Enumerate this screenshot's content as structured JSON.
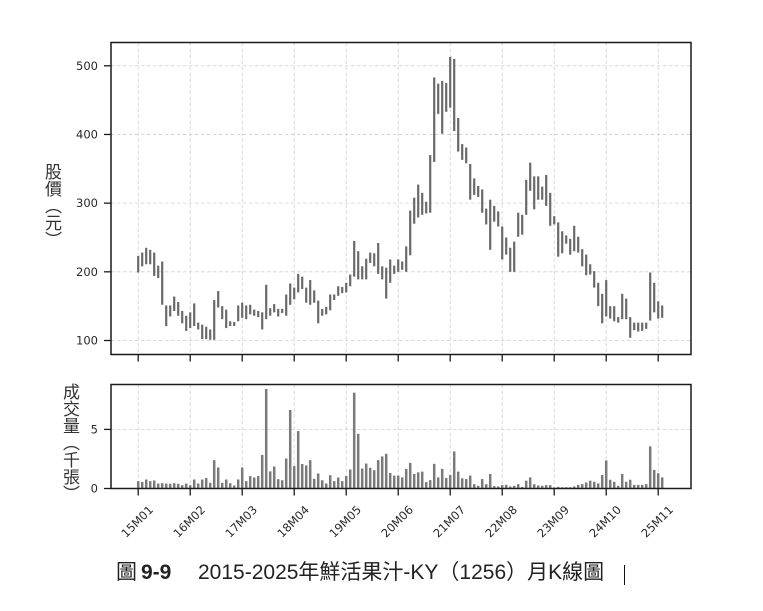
{
  "figure": {
    "caption_prefix": "圖",
    "caption_number": "9-9",
    "caption_text": "2015-2025年鮮活果汁-KY（1256）月K線圖"
  },
  "axes": {
    "price_ylabel": "股價（元）",
    "volume_ylabel": "成交量（千張）"
  },
  "colors": {
    "price_bar": "#6a6a6a",
    "volume_bar": "#7a7a7a",
    "grid": "#cfcfcf",
    "frame": "#1a1a1a",
    "background": "#ffffff"
  },
  "chart_data": [
    {
      "type": "bar",
      "subtype": "monthly candlestick (high-low range bars)",
      "title": "2015-2025年鮮活果汁-KY（1256）月K線圖",
      "xlabel": "",
      "ylabel": "股價（元）",
      "xlim": [
        -6.8,
        138.2
      ],
      "ylim": [
        79.6,
        533.9
      ],
      "grid": true,
      "yticks": [
        100,
        200,
        300,
        400,
        500
      ],
      "xtick_positions": [
        0,
        13,
        26,
        39,
        52,
        65,
        78,
        91,
        104,
        117,
        130
      ],
      "xtick_labels": [
        "15M01",
        "16M02",
        "17M03",
        "18M04",
        "19M05",
        "20M06",
        "21M07",
        "22M08",
        "23M09",
        "24M10",
        "25M11"
      ],
      "categories": [
        "15M01",
        "15M02",
        "15M03",
        "15M04",
        "15M05",
        "15M06",
        "15M07",
        "15M08",
        "15M09",
        "15M10",
        "15M11",
        "15M12",
        "16M01",
        "16M02",
        "16M03",
        "16M04",
        "16M05",
        "16M06",
        "16M07",
        "16M08",
        "16M09",
        "16M10",
        "16M11",
        "16M12",
        "17M01",
        "17M02",
        "17M03",
        "17M04",
        "17M05",
        "17M06",
        "17M07",
        "17M08",
        "17M09",
        "17M10",
        "17M11",
        "17M12",
        "18M01",
        "18M02",
        "18M03",
        "18M04",
        "18M05",
        "18M06",
        "18M07",
        "18M08",
        "18M09",
        "18M10",
        "18M11",
        "18M12",
        "19M01",
        "19M02",
        "19M03",
        "19M04",
        "19M05",
        "19M06",
        "19M07",
        "19M08",
        "19M09",
        "19M10",
        "19M11",
        "19M12",
        "20M01",
        "20M02",
        "20M03",
        "20M04",
        "20M05",
        "20M06",
        "20M07",
        "20M08",
        "20M09",
        "20M10",
        "20M11",
        "20M12",
        "21M01",
        "21M02",
        "21M03",
        "21M04",
        "21M05",
        "21M06",
        "21M07",
        "21M08",
        "21M09",
        "21M10",
        "21M11",
        "21M12",
        "22M01",
        "22M02",
        "22M03",
        "22M04",
        "22M05",
        "22M06",
        "22M07",
        "22M08",
        "22M09",
        "22M10",
        "22M11",
        "22M12",
        "23M01",
        "23M02",
        "23M03",
        "23M04",
        "23M05",
        "23M06",
        "23M07",
        "23M08",
        "23M09",
        "23M10",
        "23M11",
        "23M12",
        "24M01",
        "24M02",
        "24M03",
        "24M04",
        "24M05",
        "24M06",
        "24M07",
        "24M08",
        "24M09",
        "24M10",
        "24M11",
        "24M12",
        "25M01",
        "25M02",
        "25M03",
        "25M04",
        "25M05",
        "25M06",
        "25M07",
        "25M08",
        "25M09",
        "25M10",
        "25M11",
        "25M12"
      ],
      "series": [
        {
          "name": "high",
          "values": [
            223,
            228,
            235,
            232,
            228,
            209,
            215,
            151,
            151,
            164,
            156,
            143,
            136,
            141,
            154,
            126,
            123,
            120,
            116,
            159,
            172,
            150,
            145,
            128,
            127,
            151,
            155,
            151,
            152,
            145,
            143,
            141,
            181,
            147,
            153,
            146,
            146,
            167,
            183,
            177,
            197,
            193,
            177,
            188,
            173,
            158,
            146,
            149,
            167,
            167,
            179,
            178,
            184,
            196,
            245,
            230,
            208,
            219,
            228,
            227,
            242,
            208,
            206,
            218,
            209,
            218,
            215,
            237,
            289,
            308,
            327,
            315,
            302,
            370,
            483,
            474,
            478,
            475,
            513,
            510,
            424,
            386,
            381,
            357,
            336,
            325,
            320,
            292,
            305,
            296,
            288,
            266,
            250,
            235,
            244,
            286,
            283,
            334,
            359,
            339,
            339,
            324,
            341,
            315,
            281,
            272,
            259,
            253,
            248,
            267,
            251,
            233,
            225,
            211,
            201,
            184,
            168,
            188,
            150,
            150,
            134,
            168,
            161,
            134,
            126,
            126,
            126,
            126,
            199,
            184,
            157,
            151
          ]
        },
        {
          "name": "low",
          "values": [
            199,
            208,
            211,
            211,
            194,
            191,
            152,
            121,
            135,
            143,
            136,
            125,
            114,
            118,
            121,
            116,
            102,
            102,
            101,
            101,
            148,
            131,
            118,
            121,
            121,
            128,
            133,
            131,
            138,
            136,
            134,
            116,
            131,
            136,
            141,
            135,
            140,
            136,
            152,
            160,
            170,
            175,
            155,
            152,
            155,
            125,
            136,
            138,
            144,
            159,
            165,
            169,
            170,
            179,
            193,
            189,
            189,
            189,
            213,
            208,
            197,
            189,
            161,
            184,
            197,
            200,
            203,
            200,
            224,
            270,
            279,
            283,
            285,
            286,
            360,
            430,
            401,
            433,
            439,
            405,
            375,
            363,
            358,
            305,
            312,
            309,
            286,
            269,
            232,
            273,
            266,
            218,
            225,
            200,
            200,
            251,
            254,
            283,
            318,
            291,
            305,
            305,
            296,
            267,
            269,
            222,
            227,
            241,
            225,
            230,
            228,
            208,
            195,
            196,
            177,
            150,
            125,
            135,
            132,
            128,
            126,
            131,
            131,
            104,
            115,
            113,
            114,
            117,
            129,
            141,
            132,
            133
          ]
        }
      ]
    },
    {
      "type": "bar",
      "title": "",
      "xlabel": "",
      "ylabel": "成交量（千張）",
      "xlim": [
        -6.8,
        138.2
      ],
      "ylim": [
        0,
        8.8
      ],
      "grid": true,
      "yticks": [
        0,
        5
      ],
      "xtick_positions": [
        0,
        13,
        26,
        39,
        52,
        65,
        78,
        91,
        104,
        117,
        130
      ],
      "xtick_labels": [
        "15M01",
        "16M02",
        "17M03",
        "18M04",
        "19M05",
        "20M06",
        "21M07",
        "22M08",
        "23M09",
        "24M10",
        "25M11"
      ],
      "series": [
        {
          "name": "volume",
          "values": [
            0.62,
            0.56,
            0.76,
            0.62,
            0.68,
            0.42,
            0.45,
            0.42,
            0.4,
            0.45,
            0.4,
            0.28,
            0.42,
            0.28,
            0.76,
            0.42,
            0.76,
            0.88,
            0.48,
            2.4,
            1.78,
            0.48,
            0.76,
            0.45,
            0.25,
            0.76,
            1.78,
            0.62,
            1.05,
            0.93,
            1.05,
            2.84,
            8.42,
            1.45,
            1.86,
            0.79,
            0.7,
            2.54,
            6.64,
            1.89,
            4.86,
            2.07,
            1.95,
            2.4,
            0.82,
            1.27,
            0.7,
            0.42,
            1.13,
            0.62,
            0.93,
            0.62,
            1.05,
            1.61,
            8.11,
            4.63,
            1.69,
            2.11,
            1.75,
            1.55,
            2.4,
            2.71,
            2.94,
            1.31,
            1.09,
            1.09,
            0.94,
            1.66,
            2.17,
            1.23,
            1.37,
            1.43,
            0.54,
            0.71,
            2.09,
            0.94,
            1.66,
            0.89,
            1.14,
            3.14,
            1.43,
            0.86,
            0.8,
            1.09,
            0.37,
            0.23,
            0.8,
            0.37,
            1.23,
            0.2,
            0.17,
            0.29,
            0.31,
            0.17,
            0.23,
            0.37,
            0.14,
            0.66,
            0.94,
            0.37,
            0.26,
            0.23,
            0.29,
            0.29,
            0.09,
            0.14,
            0.11,
            0.11,
            0.11,
            0.17,
            0.31,
            0.37,
            0.51,
            0.66,
            0.57,
            0.43,
            1.14,
            2.37,
            0.74,
            0.57,
            0.23,
            1.23,
            0.57,
            0.74,
            0.31,
            0.31,
            0.31,
            0.37,
            3.57,
            1.57,
            1.29,
            0.94
          ]
        }
      ]
    }
  ]
}
